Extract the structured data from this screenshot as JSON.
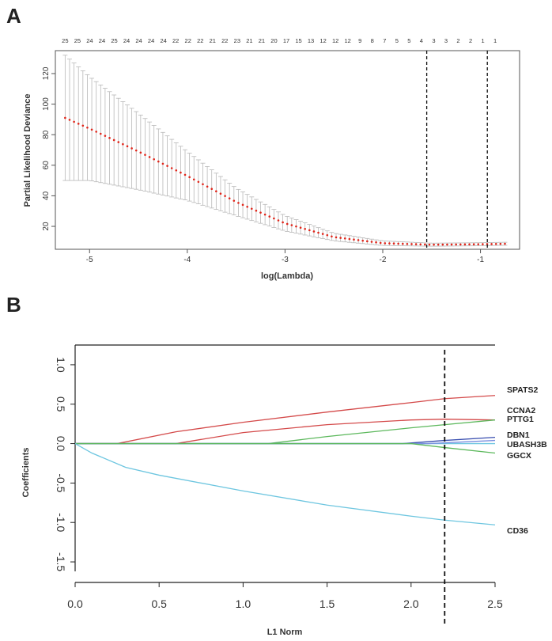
{
  "panels": {
    "a_letter": "A",
    "b_letter": "B"
  },
  "chart_data": [
    {
      "type": "scatter",
      "panel": "A",
      "title": "",
      "xlabel": "log(Lambda)",
      "ylabel": "Partial Likelihood Deviance",
      "xlim": [
        -5.35,
        -0.6
      ],
      "ylim": [
        5,
        135
      ],
      "xticks": [
        -5,
        -4,
        -3,
        -2,
        -1
      ],
      "yticks": [
        20,
        40,
        60,
        80,
        100,
        120
      ],
      "top_axis_labels": [
        "25",
        "25",
        "24",
        "24",
        "25",
        "24",
        "24",
        "24",
        "24",
        "22",
        "22",
        "22",
        "21",
        "22",
        "23",
        "21",
        "21",
        "20",
        "17",
        "15",
        "13",
        "12",
        "12",
        "12",
        "9",
        "8",
        "7",
        "5",
        "5",
        "4",
        "3",
        "3",
        "2",
        "2",
        "1",
        "1"
      ],
      "top_axis_x_start": -5.25,
      "top_axis_x_end": -0.85,
      "vlines": [
        -1.55,
        -0.93
      ],
      "n_points": 100,
      "x_start": -5.25,
      "x_end": -0.75,
      "mean_deviance_anchors": [
        [
          -5.25,
          91
        ],
        [
          -5.0,
          84
        ],
        [
          -4.5,
          69
        ],
        [
          -4.0,
          53
        ],
        [
          -3.5,
          36
        ],
        [
          -3.0,
          22
        ],
        [
          -2.5,
          13
        ],
        [
          -2.0,
          9
        ],
        [
          -1.5,
          8
        ],
        [
          -1.0,
          8.3
        ],
        [
          -0.75,
          8.6
        ]
      ],
      "error_halfwidth_anchors": [
        [
          -5.25,
          41
        ],
        [
          -5.0,
          34
        ],
        [
          -4.5,
          25
        ],
        [
          -4.0,
          16
        ],
        [
          -3.5,
          9
        ],
        [
          -3.0,
          5
        ],
        [
          -2.5,
          2.5
        ],
        [
          -2.0,
          1.5
        ],
        [
          -1.5,
          1
        ],
        [
          -0.75,
          1
        ]
      ],
      "point_color": "#e0261b",
      "errorbar_color": "#b8b8b8"
    },
    {
      "type": "line",
      "panel": "B",
      "title": "",
      "xlabel": "L1 Norm",
      "ylabel": "Coefficients",
      "xlim": [
        0,
        2.5
      ],
      "ylim": [
        -1.62,
        1.25
      ],
      "xticks": [
        0.0,
        0.5,
        1.0,
        1.5,
        2.0,
        2.5
      ],
      "xtick_labels": [
        "0.0",
        "0.5",
        "1.0",
        "1.5",
        "2.0",
        "2.5"
      ],
      "yticks": [
        1.0,
        0.5,
        0.0,
        -0.5,
        -1.0,
        -1.5
      ],
      "ytick_labels": [
        "1.0",
        "0.5",
        "0.0",
        "-0.5",
        "-1.0",
        "-1.5"
      ],
      "vline": 2.2,
      "series": [
        {
          "name": "SPATS2",
          "color": "#d44a4a",
          "points": [
            [
              0,
              0
            ],
            [
              0.25,
              0
            ],
            [
              0.6,
              0.15
            ],
            [
              1.0,
              0.27
            ],
            [
              1.5,
              0.4
            ],
            [
              2.0,
              0.52
            ],
            [
              2.2,
              0.57
            ],
            [
              2.5,
              0.61
            ]
          ]
        },
        {
          "name": "CCNA2",
          "color": "#d44a4a",
          "points": [
            [
              0,
              0
            ],
            [
              0.6,
              0
            ],
            [
              1.0,
              0.14
            ],
            [
              1.5,
              0.24
            ],
            [
              2.0,
              0.3
            ],
            [
              2.2,
              0.31
            ],
            [
              2.5,
              0.3
            ]
          ]
        },
        {
          "name": "PTTG1",
          "color": "#5cb85c",
          "points": [
            [
              0,
              0
            ],
            [
              1.15,
              0
            ],
            [
              1.5,
              0.09
            ],
            [
              2.0,
              0.2
            ],
            [
              2.2,
              0.24
            ],
            [
              2.5,
              0.3
            ]
          ]
        },
        {
          "name": "DBN1",
          "color": "#3a4fb0",
          "points": [
            [
              0,
              0
            ],
            [
              1.95,
              0
            ],
            [
              2.2,
              0.04
            ],
            [
              2.5,
              0.08
            ]
          ]
        },
        {
          "name": "UBASH3B",
          "color": "#7a8fe0",
          "points": [
            [
              0,
              0
            ],
            [
              2.1,
              0
            ],
            [
              2.2,
              0.01
            ],
            [
              2.5,
              0.04
            ]
          ]
        },
        {
          "name": "GGCX",
          "color": "#5cb85c",
          "points": [
            [
              0,
              0
            ],
            [
              2.0,
              0
            ],
            [
              2.2,
              -0.05
            ],
            [
              2.5,
              -0.12
            ]
          ]
        },
        {
          "name": "CD36",
          "color": "#6ec6e0",
          "points": [
            [
              0,
              0
            ],
            [
              0.1,
              -0.12
            ],
            [
              0.3,
              -0.3
            ],
            [
              0.5,
              -0.4
            ],
            [
              1.0,
              -0.6
            ],
            [
              1.5,
              -0.78
            ],
            [
              2.0,
              -0.92
            ],
            [
              2.2,
              -0.97
            ],
            [
              2.5,
              -1.03
            ]
          ]
        }
      ],
      "horizontal_ref_series": [
        {
          "color": "#6ec6e0",
          "y": 0,
          "x_range": [
            0,
            2.5
          ]
        }
      ]
    }
  ]
}
